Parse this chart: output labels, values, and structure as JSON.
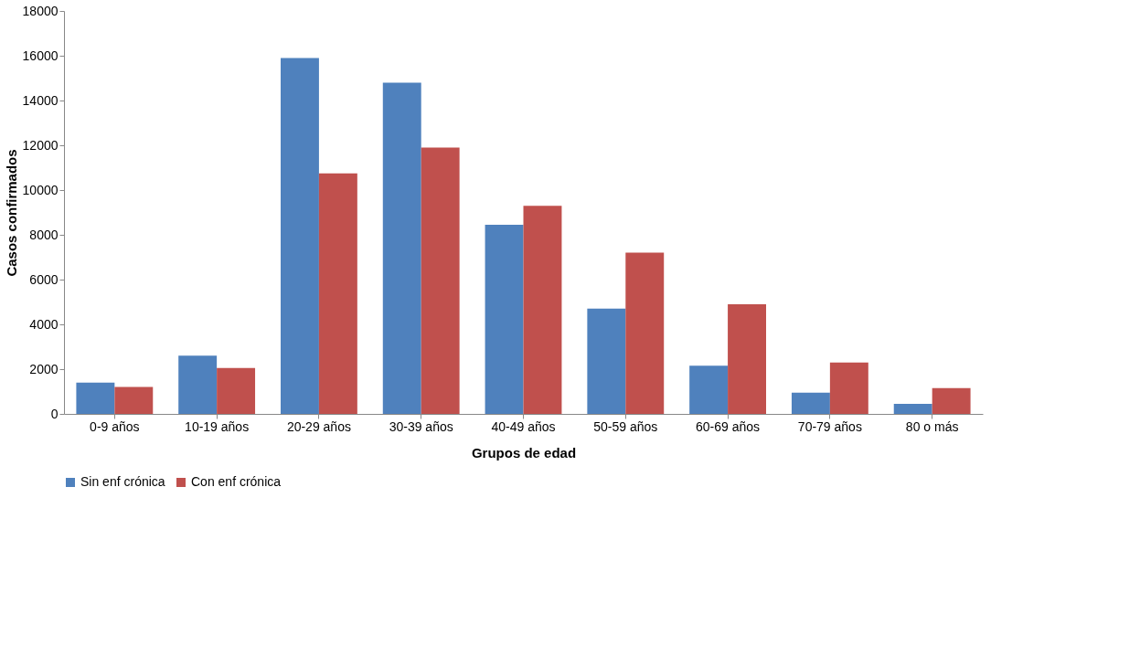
{
  "chart_data": {
    "type": "bar",
    "xlabel": "Grupos de edad",
    "ylabel": "Casos confirmados",
    "categories": [
      "0-9 años",
      "10-19 años",
      "20-29 años",
      "30-39 años",
      "40-49 años",
      "50-59 años",
      "60-69 años",
      "70-79 años",
      "80 o más"
    ],
    "series": [
      {
        "name": "Sin enf crónica",
        "color": "#4f81bd",
        "values": [
          1400,
          2600,
          15900,
          14800,
          8450,
          4700,
          2150,
          950,
          450
        ]
      },
      {
        "name": "Con enf crónica",
        "color": "#c0504d",
        "values": [
          1200,
          2050,
          10750,
          11900,
          9300,
          7200,
          4900,
          2300,
          1150
        ]
      }
    ],
    "ylim": [
      0,
      18000
    ],
    "yticks": [
      0,
      2000,
      4000,
      6000,
      8000,
      10000,
      12000,
      14000,
      16000,
      18000
    ],
    "grid": false,
    "legend": "bottom"
  }
}
